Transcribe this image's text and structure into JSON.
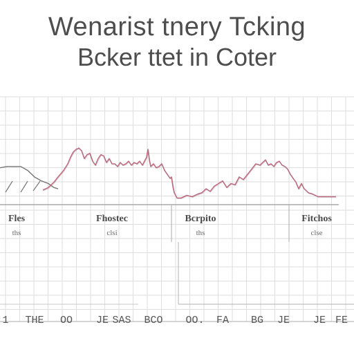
{
  "title_line1": "Wenarist tnery Tcking",
  "title_line2": "Bcker ttet in Coter",
  "chart_data": {
    "type": "line",
    "title": "Wenarist tnery Tcking Bcker ttet in Coter",
    "grid": true,
    "x_tick_labels": [
      "1",
      "THE",
      "OO",
      "JE",
      "SAS",
      "BCO",
      "OO.",
      "FA",
      "BG",
      "JE",
      "JE",
      "FE"
    ],
    "section_labels": [
      {
        "label": "Fles",
        "sub": "ths"
      },
      {
        "label": "Fhostec",
        "sub": "clsi"
      },
      {
        "label": "Bcrpito",
        "sub": "ths"
      },
      {
        "label": "Fitchos",
        "sub": "clse"
      }
    ],
    "series": [
      {
        "color": "#c06a80",
        "x": [
          62,
          70,
          78,
          84,
          92,
          98,
          102,
          106,
          110,
          114,
          118,
          122,
          126,
          130,
          134,
          138,
          142,
          146,
          150,
          154,
          158,
          162,
          166,
          170,
          174,
          178,
          182,
          186,
          190,
          194,
          198,
          202,
          206,
          210,
          212,
          214,
          216,
          218,
          222,
          226,
          230,
          234,
          238,
          242,
          246,
          248,
          250,
          252,
          256,
          262,
          270,
          278,
          286,
          292,
          298,
          304,
          310,
          316,
          322,
          328,
          334,
          340,
          346,
          352,
          358,
          364,
          370,
          376,
          380,
          384,
          388,
          392,
          396,
          400,
          404,
          408,
          412,
          416,
          420,
          424,
          428,
          432,
          436,
          440,
          446,
          452,
          460,
          470,
          480,
          486
        ],
        "y": [
          20,
          24,
          32,
          40,
          50,
          60,
          70,
          78,
          82,
          84,
          80,
          68,
          74,
          76,
          64,
          58,
          68,
          74,
          72,
          62,
          68,
          60,
          60,
          56,
          62,
          58,
          60,
          64,
          58,
          62,
          60,
          64,
          58,
          66,
          70,
          82,
          66,
          56,
          60,
          54,
          56,
          60,
          50,
          44,
          38,
          40,
          26,
          16,
          8,
          8,
          12,
          10,
          14,
          16,
          22,
          18,
          26,
          30,
          34,
          24,
          30,
          28,
          40,
          36,
          44,
          52,
          60,
          58,
          62,
          66,
          58,
          60,
          56,
          62,
          64,
          58,
          56,
          52,
          44,
          38,
          32,
          22,
          30,
          22,
          16,
          14,
          10,
          10,
          10,
          10
        ]
      }
    ],
    "gray_shape": {
      "color": "#777777",
      "x": [
        0,
        10,
        20,
        30,
        40,
        50,
        60,
        70,
        78,
        84
      ],
      "y": [
        54,
        56,
        56,
        56,
        50,
        40,
        34,
        30,
        24,
        22
      ]
    }
  }
}
